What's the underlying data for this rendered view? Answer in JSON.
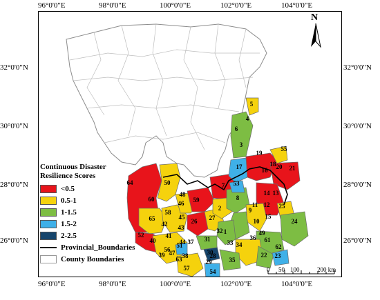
{
  "map": {
    "longitude_labels": [
      "96°0'0\"E",
      "98°0'0\"E",
      "100°0'0\"E",
      "102°0'0\"E",
      "104°0'0\"E"
    ],
    "latitude_labels": [
      "32°0'0\"N",
      "30°0'0\"N",
      "28°0'0\"N",
      "26°0'0\"N"
    ],
    "north_label": "N",
    "scale": {
      "ticks": [
        "0",
        "50",
        "100",
        "200 km"
      ]
    }
  },
  "legend": {
    "title_line1": "Continuous Disaster",
    "title_line2": "Resilience Scores",
    "classes": [
      {
        "label": "<0.5",
        "color": "#e8141b"
      },
      {
        "label": "0.5-1",
        "color": "#f5d20d"
      },
      {
        "label": "1-1.5",
        "color": "#7dbd43"
      },
      {
        "label": "1.5-2",
        "color": "#3fb0e8"
      },
      {
        "label": "2-2.5",
        "color": "#16456c"
      }
    ],
    "provincial_label": "Provincial_Boundaries",
    "county_label": "County Boundaries"
  },
  "counties": [
    {
      "id": "1",
      "cls": 2
    },
    {
      "id": "2",
      "cls": 1
    },
    {
      "id": "3",
      "cls": 2
    },
    {
      "id": "4",
      "cls": 2
    },
    {
      "id": "5",
      "cls": 1
    },
    {
      "id": "6",
      "cls": 2
    },
    {
      "id": "7",
      "cls": 0
    },
    {
      "id": "8",
      "cls": 2
    },
    {
      "id": "9",
      "cls": 2
    },
    {
      "id": "10",
      "cls": 1
    },
    {
      "id": "11",
      "cls": 1
    },
    {
      "id": "12",
      "cls": 0
    },
    {
      "id": "13",
      "cls": 0
    },
    {
      "id": "14",
      "cls": 0
    },
    {
      "id": "15",
      "cls": 1
    },
    {
      "id": "16",
      "cls": 0
    },
    {
      "id": "17",
      "cls": 3
    },
    {
      "id": "18",
      "cls": 1
    },
    {
      "id": "19",
      "cls": 0
    },
    {
      "id": "20",
      "cls": 0
    },
    {
      "id": "21",
      "cls": 0
    },
    {
      "id": "22",
      "cls": 1
    },
    {
      "id": "23",
      "cls": 3
    },
    {
      "id": "24",
      "cls": 2
    },
    {
      "id": "25",
      "cls": 0
    },
    {
      "id": "26",
      "cls": 0
    },
    {
      "id": "27",
      "cls": 1
    },
    {
      "id": "28",
      "cls": 1
    },
    {
      "id": "29",
      "cls": 2
    },
    {
      "id": "30",
      "cls": 4
    },
    {
      "id": "31",
      "cls": 2
    },
    {
      "id": "32",
      "cls": 1
    },
    {
      "id": "33",
      "cls": 1
    },
    {
      "id": "34",
      "cls": 1
    },
    {
      "id": "35",
      "cls": 2
    },
    {
      "id": "36",
      "cls": 1
    },
    {
      "id": "37",
      "cls": 1
    },
    {
      "id": "38",
      "cls": 1
    },
    {
      "id": "39",
      "cls": 1
    },
    {
      "id": "40",
      "cls": 0
    },
    {
      "id": "41",
      "cls": 1
    },
    {
      "id": "42",
      "cls": 1
    },
    {
      "id": "43",
      "cls": 1
    },
    {
      "id": "44",
      "cls": 1
    },
    {
      "id": "45",
      "cls": 1
    },
    {
      "id": "46",
      "cls": 1
    },
    {
      "id": "47",
      "cls": 0
    },
    {
      "id": "48",
      "cls": 1
    },
    {
      "id": "49",
      "cls": 2
    },
    {
      "id": "50",
      "cls": 1
    },
    {
      "id": "51",
      "cls": 3
    },
    {
      "id": "52",
      "cls": 1
    },
    {
      "id": "53",
      "cls": 3
    },
    {
      "id": "54",
      "cls": 3
    },
    {
      "id": "55",
      "cls": 1
    },
    {
      "id": "56",
      "cls": 0
    },
    {
      "id": "57",
      "cls": 1
    },
    {
      "id": "58",
      "cls": 1
    },
    {
      "id": "59",
      "cls": 0
    },
    {
      "id": "60",
      "cls": 0
    },
    {
      "id": "61",
      "cls": 1
    },
    {
      "id": "62",
      "cls": 2
    },
    {
      "id": "63",
      "cls": 1
    },
    {
      "id": "64",
      "cls": 0
    },
    {
      "id": "65",
      "cls": 1
    }
  ]
}
